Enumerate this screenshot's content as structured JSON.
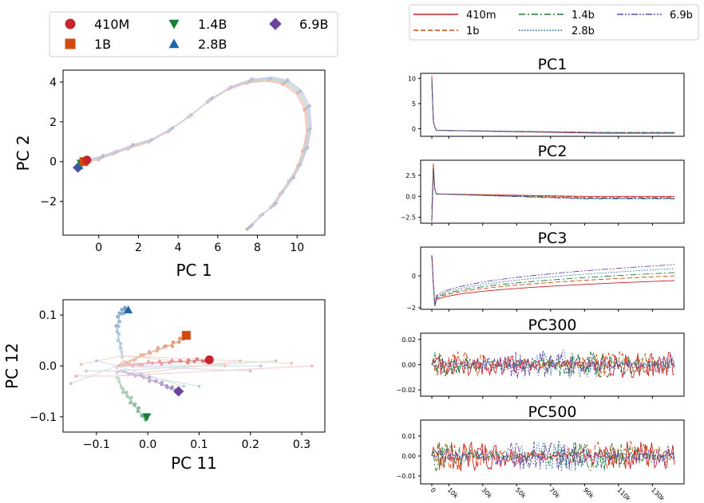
{
  "colors": {
    "410m": "#c8242b",
    "1b": "#d04a10",
    "1.4b": "#1b7d3a",
    "2.8b": "#1f63a8",
    "6.9b": "#6a45a0"
  },
  "chart_data": [
    {
      "type": "scatter",
      "xlabel": "PC 1",
      "ylabel": "PC 2",
      "xlim": [
        -1.8,
        11.4
      ],
      "ylim": [
        -3.7,
        4.6
      ],
      "xticks": [
        "0",
        "2",
        "4",
        "6",
        "8",
        "10"
      ],
      "yticks": [
        "−2",
        "0",
        "2",
        "4"
      ],
      "legend": {
        "placement": "top",
        "entries": [
          {
            "key": "410m",
            "label": "410M",
            "marker": "circle"
          },
          {
            "key": "1b",
            "label": "1B",
            "marker": "square"
          },
          {
            "key": "1.4b",
            "label": "1.4B",
            "marker": "triangle-down"
          },
          {
            "key": "2.8b",
            "label": "2.8B",
            "marker": "triangle-up"
          },
          {
            "key": "6.9b",
            "label": "6.9B",
            "marker": "diamond"
          }
        ]
      },
      "trajectory": [
        [
          7.6,
          -3.3
        ],
        [
          8.2,
          -2.7
        ],
        [
          8.8,
          -2.2
        ],
        [
          9.2,
          -1.6
        ],
        [
          9.7,
          -0.9
        ],
        [
          10.1,
          -0.2
        ],
        [
          10.4,
          0.6
        ],
        [
          10.6,
          1.6
        ],
        [
          10.5,
          2.7
        ],
        [
          10.1,
          3.5
        ],
        [
          9.4,
          4.0
        ],
        [
          8.6,
          4.15
        ],
        [
          7.6,
          4.05
        ],
        [
          6.6,
          3.7
        ],
        [
          5.6,
          3.1
        ],
        [
          4.6,
          2.3
        ],
        [
          3.6,
          1.6
        ],
        [
          2.6,
          1.05
        ],
        [
          1.6,
          0.75
        ],
        [
          0.8,
          0.45
        ],
        [
          0.1,
          0.2
        ],
        [
          -0.5,
          0.05
        ]
      ],
      "series": [
        {
          "key": "410m",
          "end": [
            -0.6,
            0.08
          ]
        },
        {
          "key": "1b",
          "end": [
            -0.75,
            0.0
          ]
        },
        {
          "key": "1.4b",
          "end": [
            -0.9,
            -0.08
          ]
        },
        {
          "key": "2.8b",
          "end": [
            -1.0,
            -0.2
          ]
        },
        {
          "key": "6.9b",
          "end": [
            -1.05,
            -0.3
          ]
        }
      ]
    },
    {
      "type": "scatter",
      "xlabel": "PC 11",
      "ylabel": "PC 12",
      "xlim": [
        -0.165,
        0.345
      ],
      "ylim": [
        -0.13,
        0.13
      ],
      "xticks": [
        "−0.1",
        "0.0",
        "0.1",
        "0.2",
        "0.3"
      ],
      "yticks": [
        "−0.1",
        "0.0",
        "0.1"
      ],
      "series": [
        {
          "key": "410m",
          "end": [
            0.12,
            0.012
          ],
          "path": [
            [
              -0.06,
              0.0
            ],
            [
              -0.02,
              0.004
            ],
            [
              0.02,
              0.006
            ],
            [
              0.06,
              0.008
            ],
            [
              0.09,
              0.01
            ],
            [
              0.12,
              0.012
            ]
          ]
        },
        {
          "key": "1b",
          "end": [
            0.075,
            0.06
          ],
          "path": [
            [
              -0.06,
              0.0
            ],
            [
              -0.03,
              0.012
            ],
            [
              0.0,
              0.025
            ],
            [
              0.03,
              0.035
            ],
            [
              0.06,
              0.048
            ],
            [
              0.075,
              0.06
            ]
          ]
        },
        {
          "key": "1.4b",
          "end": [
            -0.002,
            -0.1
          ],
          "path": [
            [
              -0.06,
              -0.02
            ],
            [
              -0.05,
              -0.045
            ],
            [
              -0.035,
              -0.065
            ],
            [
              -0.02,
              -0.085
            ],
            [
              -0.005,
              -0.105
            ],
            [
              -0.002,
              -0.1
            ]
          ]
        },
        {
          "key": "2.8b",
          "end": [
            -0.038,
            0.11
          ],
          "path": [
            [
              -0.05,
              0.02
            ],
            [
              -0.055,
              0.045
            ],
            [
              -0.06,
              0.075
            ],
            [
              -0.055,
              0.1
            ],
            [
              -0.045,
              0.112
            ],
            [
              -0.038,
              0.11
            ]
          ]
        },
        {
          "key": "6.9b",
          "end": [
            0.06,
            -0.05
          ],
          "path": [
            [
              -0.06,
              -0.01
            ],
            [
              -0.03,
              -0.015
            ],
            [
              0.0,
              -0.025
            ],
            [
              0.025,
              -0.035
            ],
            [
              0.045,
              -0.043
            ],
            [
              0.06,
              -0.05
            ]
          ]
        }
      ],
      "spread": [
        [
          0.32,
          0.0
        ],
        [
          0.28,
          0.005
        ],
        [
          0.25,
          0.01
        ],
        [
          0.22,
          0.0
        ],
        [
          0.2,
          -0.01
        ],
        [
          0.18,
          0.01
        ],
        [
          0.15,
          0.0
        ],
        [
          0.1,
          -0.04
        ],
        [
          0.07,
          -0.04
        ],
        [
          -0.15,
          -0.035
        ],
        [
          -0.14,
          -0.02
        ],
        [
          -0.13,
          0.003
        ],
        [
          -0.12,
          -0.01
        ],
        [
          -0.1,
          0.01
        ]
      ]
    },
    {
      "type": "line",
      "legend": {
        "placement": "top",
        "entries": [
          {
            "key": "410m",
            "label": "410m",
            "dash": "solid"
          },
          {
            "key": "1b",
            "label": "1b",
            "dash": "dashed"
          },
          {
            "key": "1.4b",
            "label": "1.4b",
            "dash": "dashdot"
          },
          {
            "key": "2.8b",
            "label": "2.8b",
            "dash": "dotted"
          },
          {
            "key": "6.9b",
            "label": "6.9b",
            "dash": "dashdotdot"
          }
        ]
      },
      "x_ticks": [
        "0",
        "10k",
        "30k",
        "50k",
        "70k",
        "90k",
        "110k",
        "130k"
      ],
      "subplots": [
        {
          "title": "PC1",
          "ylim": [
            -1.5,
            11
          ],
          "yticks": [
            "0",
            "5",
            "10"
          ],
          "kind": "decay",
          "peak": 10.5,
          "settle": -0.3,
          "final": [
            -0.9,
            -0.75,
            -0.8,
            -0.7,
            -0.85
          ]
        },
        {
          "title": "PC2",
          "ylim": [
            -3.2,
            4.3
          ],
          "yticks": [
            "−2.5",
            "0.0",
            "2.5"
          ],
          "kind": "spike",
          "peak": 3.9,
          "settle": 0.3,
          "final": [
            0.0,
            -0.1,
            -0.2,
            -0.25,
            -0.3
          ]
        },
        {
          "title": "PC3",
          "ylim": [
            -2.1,
            1.8
          ],
          "yticks": [
            "−2",
            "0"
          ],
          "kind": "rise",
          "dip": -1.9,
          "final": [
            -0.3,
            -0.0,
            0.2,
            0.45,
            0.7
          ]
        },
        {
          "title": "PC300",
          "ylim": [
            -0.025,
            0.025
          ],
          "yticks": [
            "−0.02",
            "0.00",
            "0.02"
          ],
          "kind": "noise",
          "amp": 0.012
        },
        {
          "title": "PC500",
          "ylim": [
            -0.014,
            0.018
          ],
          "yticks": [
            "−0.01",
            "0.00",
            "0.01"
          ],
          "kind": "noise",
          "amp": 0.008
        }
      ]
    }
  ]
}
